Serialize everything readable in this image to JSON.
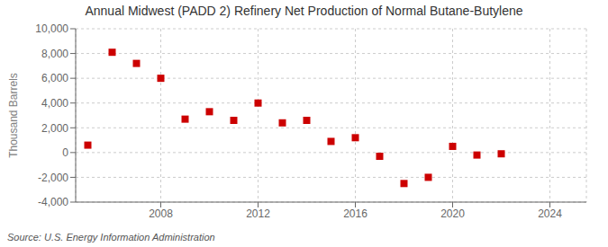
{
  "chart_data": {
    "type": "scatter",
    "title": "Annual Midwest (PADD 2) Refinery Net Production of Normal Butane-Butylene",
    "ylabel": "Thousand Barrels",
    "source": "Source: U.S. Energy Information Administration",
    "x": [
      2005,
      2006,
      2007,
      2008,
      2009,
      2010,
      2011,
      2012,
      2013,
      2014,
      2015,
      2016,
      2017,
      2018,
      2019,
      2020,
      2021,
      2022
    ],
    "values": [
      600,
      8100,
      7200,
      6000,
      2700,
      3300,
      2600,
      4000,
      2400,
      2600,
      900,
      1200,
      -300,
      -2500,
      -2000,
      500,
      -200,
      -100
    ],
    "color": "#cc0000",
    "marker": "square",
    "xlim": [
      2004.5,
      2025.5
    ],
    "ylim": [
      -4000,
      10000
    ],
    "xticks": [
      2008,
      2012,
      2016,
      2020,
      2024
    ],
    "yticks": [
      {
        "value": -4000,
        "label": "-4,000"
      },
      {
        "value": -2000,
        "label": "-2,000"
      },
      0,
      {
        "value": 2000,
        "label": "2,000"
      },
      {
        "value": 4000,
        "label": "4,000"
      },
      {
        "value": 6000,
        "label": "6,000"
      },
      {
        "value": 8000,
        "label": "8,000"
      },
      {
        "value": 10000,
        "label": "10,000"
      }
    ],
    "grid": true
  }
}
